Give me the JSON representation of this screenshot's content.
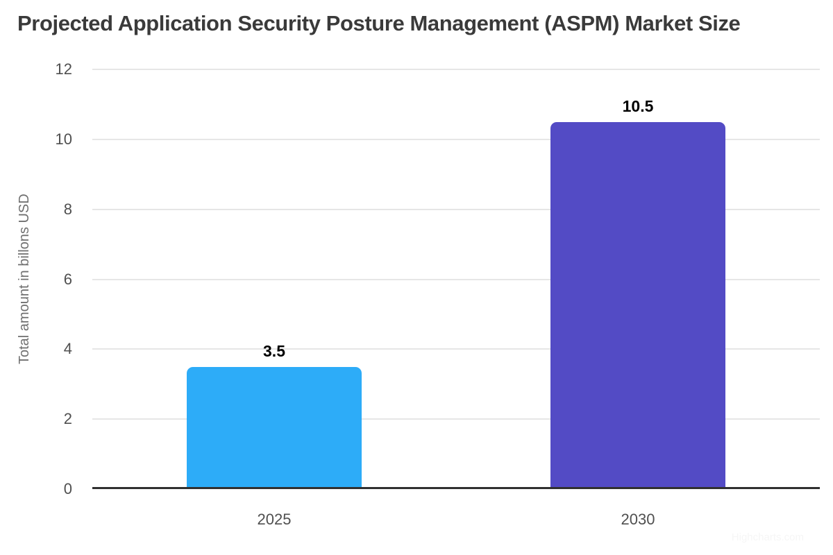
{
  "chart_data": {
    "type": "bar",
    "title": "Projected Application Security Posture Management (ASPM) Market Size",
    "ylabel": "Total amount in billons USD",
    "xlabel": "",
    "categories": [
      "2025",
      "2030"
    ],
    "values": [
      3.5,
      10.5
    ],
    "data_labels": [
      "3.5",
      "10.5"
    ],
    "bar_colors": [
      "#2DACF8",
      "#534BC5"
    ],
    "ylim": [
      0,
      12
    ],
    "yticks": [
      0,
      2,
      4,
      6,
      8,
      10,
      12
    ],
    "grid": true,
    "legend_position": "none",
    "baseline_color": "#303030",
    "gridline_color": "#e6e6e6",
    "credit": "Highcharts.com"
  }
}
